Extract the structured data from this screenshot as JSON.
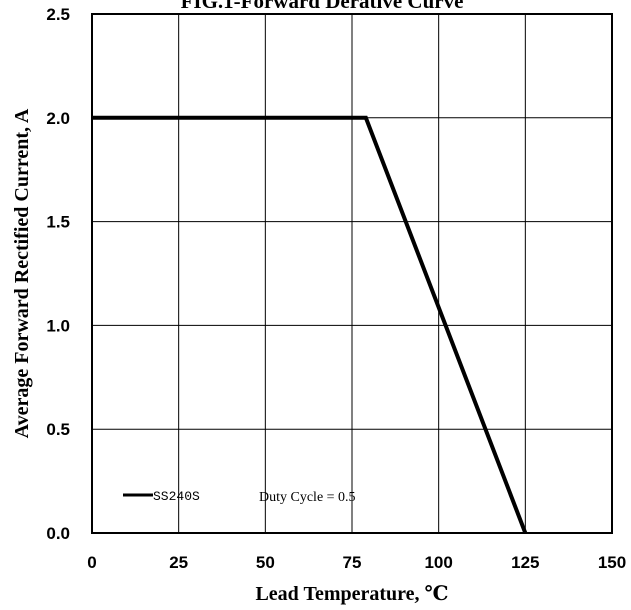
{
  "chart_data": {
    "type": "line",
    "title": "FIG.1-Forward Derative Curve",
    "xlabel": "Lead Temperature, ℃",
    "ylabel": "Average Forward Rectified Current, A",
    "xlim": [
      0,
      150
    ],
    "ylim": [
      0,
      2.5
    ],
    "x_ticks": [
      "0",
      "25",
      "50",
      "75",
      "100",
      "125",
      "150"
    ],
    "y_ticks": [
      "0.0",
      "0.5",
      "1.0",
      "1.5",
      "2.0",
      "2.5"
    ],
    "grid": true,
    "legend_position": "bottom-left",
    "annotations": [
      "Duty Cycle = 0.5"
    ],
    "series": [
      {
        "name": "SS240S",
        "color": "#000000",
        "x": [
          0,
          79,
          125
        ],
        "y": [
          2.0,
          2.0,
          0.0
        ]
      }
    ]
  }
}
